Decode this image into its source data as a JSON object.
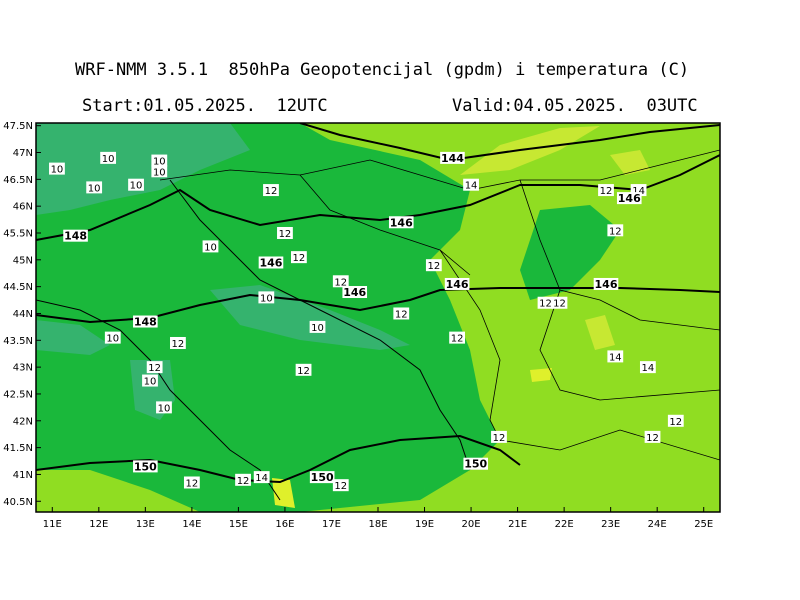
{
  "header": {
    "title": "WRF-NMM 3.5.1  850hPa Geopotencijal (gpdm) i temperatura (C)",
    "start": "Start:01.05.2025.  12UTC",
    "valid": "Valid:04.05.2025.  03UTC"
  },
  "map": {
    "lat_labels": [
      "47.5N",
      "47N",
      "46.5N",
      "46N",
      "45.5N",
      "45N",
      "44.5N",
      "44N",
      "43.5N",
      "43N",
      "42.5N",
      "42N",
      "41.5N",
      "41N",
      "40.5N"
    ],
    "lon_labels": [
      "11E",
      "12E",
      "13E",
      "14E",
      "15E",
      "16E",
      "17E",
      "18E",
      "19E",
      "20E",
      "21E",
      "22E",
      "23E",
      "24E",
      "25E"
    ],
    "colors": {
      "temp_10": "#36b36a",
      "temp_12": "#19b837",
      "temp_14": "#7ed321",
      "temp_16": "#a6e22e",
      "temp_18": "#d4ee2a",
      "coast": "#000000",
      "contour": "#000000"
    },
    "temperature_labels": [
      {
        "text": "10",
        "lon": 11.1,
        "lat": 46.7
      },
      {
        "text": "10",
        "lon": 12.2,
        "lat": 46.9
      },
      {
        "text": "10",
        "lon": 13.3,
        "lat": 46.85
      },
      {
        "text": "10",
        "lon": 11.9,
        "lat": 46.35
      },
      {
        "text": "10",
        "lon": 12.8,
        "lat": 46.4
      },
      {
        "text": "10",
        "lon": 13.3,
        "lat": 46.65
      },
      {
        "text": "12",
        "lon": 15.7,
        "lat": 46.3
      },
      {
        "text": "12",
        "lon": 16.0,
        "lat": 45.5
      },
      {
        "text": "10",
        "lon": 14.4,
        "lat": 45.25
      },
      {
        "text": "12",
        "lon": 16.3,
        "lat": 45.05
      },
      {
        "text": "12",
        "lon": 17.2,
        "lat": 44.6
      },
      {
        "text": "12",
        "lon": 19.2,
        "lat": 44.9
      },
      {
        "text": "10",
        "lon": 15.6,
        "lat": 44.3
      },
      {
        "text": "10",
        "lon": 16.7,
        "lat": 43.75
      },
      {
        "text": "12",
        "lon": 18.5,
        "lat": 44.0
      },
      {
        "text": "10",
        "lon": 12.3,
        "lat": 43.55
      },
      {
        "text": "12",
        "lon": 13.7,
        "lat": 43.45
      },
      {
        "text": "12",
        "lon": 13.2,
        "lat": 43.0
      },
      {
        "text": "10",
        "lon": 13.1,
        "lat": 42.75
      },
      {
        "text": "10",
        "lon": 13.4,
        "lat": 42.25
      },
      {
        "text": "12",
        "lon": 16.4,
        "lat": 42.95
      },
      {
        "text": "12",
        "lon": 19.7,
        "lat": 43.55
      },
      {
        "text": "12",
        "lon": 21.6,
        "lat": 44.2
      },
      {
        "text": "12",
        "lon": 21.9,
        "lat": 44.2
      },
      {
        "text": "12",
        "lon": 23.1,
        "lat": 45.55
      },
      {
        "text": "12",
        "lon": 22.9,
        "lat": 46.3
      },
      {
        "text": "14",
        "lon": 23.6,
        "lat": 46.3
      },
      {
        "text": "14",
        "lon": 20.0,
        "lat": 46.4
      },
      {
        "text": "14",
        "lon": 23.1,
        "lat": 43.2
      },
      {
        "text": "14",
        "lon": 23.8,
        "lat": 43.0
      },
      {
        "text": "12",
        "lon": 24.4,
        "lat": 42.0
      },
      {
        "text": "12",
        "lon": 23.9,
        "lat": 41.7
      },
      {
        "text": "12",
        "lon": 20.6,
        "lat": 41.7
      },
      {
        "text": "14",
        "lon": 15.5,
        "lat": 40.95
      },
      {
        "text": "12",
        "lon": 15.1,
        "lat": 40.9
      },
      {
        "text": "12",
        "lon": 14.0,
        "lat": 40.85
      },
      {
        "text": "12",
        "lon": 17.2,
        "lat": 40.8
      }
    ],
    "height_labels": [
      {
        "text": "144",
        "lon": 19.6,
        "lat": 46.9
      },
      {
        "text": "146",
        "lon": 18.5,
        "lat": 45.7
      },
      {
        "text": "146",
        "lon": 15.7,
        "lat": 44.95
      },
      {
        "text": "146",
        "lon": 17.5,
        "lat": 44.4
      },
      {
        "text": "146",
        "lon": 19.7,
        "lat": 44.55
      },
      {
        "text": "146",
        "lon": 22.9,
        "lat": 44.55
      },
      {
        "text": "146",
        "lon": 23.4,
        "lat": 46.15
      },
      {
        "text": "148",
        "lon": 11.5,
        "lat": 45.45
      },
      {
        "text": "148",
        "lon": 13.0,
        "lat": 43.85
      },
      {
        "text": "150",
        "lon": 13.0,
        "lat": 41.15
      },
      {
        "text": "150",
        "lon": 16.8,
        "lat": 40.95
      },
      {
        "text": "150",
        "lon": 20.1,
        "lat": 41.2
      }
    ]
  }
}
